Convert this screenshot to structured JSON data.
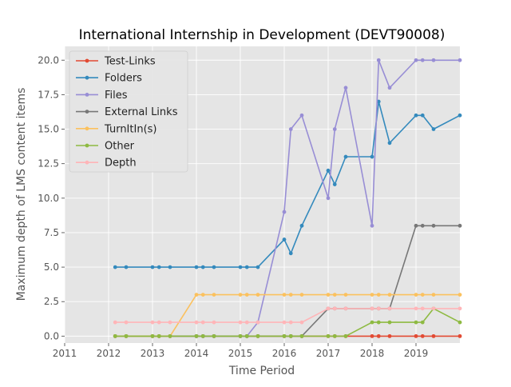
{
  "chart_data": {
    "type": "line",
    "title": "International Internship in Development (DEVT90008)",
    "xlabel": "Time Period",
    "ylabel": "Maximum depth of LMS content items",
    "xlim": [
      2011,
      2020
    ],
    "ylim": [
      -0.5,
      21
    ],
    "x_ticks": [
      2011,
      2012,
      2013,
      2014,
      2015,
      2016,
      2017,
      2018,
      2019
    ],
    "x_tick_labels": [
      "2011",
      "2012",
      "2013",
      "2014",
      "2015",
      "2016",
      "2017",
      "2018",
      "2019"
    ],
    "y_ticks": [
      0,
      2.5,
      5,
      7.5,
      10,
      12.5,
      15,
      17.5,
      20
    ],
    "y_tick_labels": [
      "0.0",
      "2.5",
      "5.0",
      "7.5",
      "10.0",
      "12.5",
      "15.0",
      "17.5",
      "20.0"
    ],
    "grid": true,
    "legend_position": "top-left",
    "background": "#e5e5e5",
    "x": [
      2012.15,
      2012.4,
      2013.0,
      2013.15,
      2013.4,
      2014.0,
      2014.15,
      2014.4,
      2015.0,
      2015.15,
      2015.4,
      2016.0,
      2016.15,
      2016.4,
      2017.0,
      2017.15,
      2017.4,
      2018.0,
      2018.15,
      2018.4,
      2019.0,
      2019.15,
      2019.4,
      2020.0
    ],
    "series": [
      {
        "name": "Test-Links",
        "color": "#E24A33",
        "values": [
          0,
          0,
          0,
          0,
          0,
          0,
          0,
          0,
          0,
          0,
          0,
          0,
          0,
          0,
          0,
          0,
          0,
          0,
          0,
          0,
          0,
          0,
          0,
          0
        ]
      },
      {
        "name": "Folders",
        "color": "#348ABD",
        "values": [
          5,
          5,
          5,
          5,
          5,
          5,
          5,
          5,
          5,
          5,
          5,
          7,
          6,
          8,
          12,
          11,
          13,
          13,
          17,
          14,
          16,
          16,
          15,
          16
        ]
      },
      {
        "name": "Files",
        "color": "#988ED5",
        "values": [
          0,
          0,
          0,
          0,
          0,
          0,
          0,
          0,
          0,
          0,
          1,
          9,
          15,
          16,
          10,
          15,
          18,
          8,
          20,
          18,
          20,
          20,
          20,
          20
        ]
      },
      {
        "name": "External Links",
        "color": "#777777",
        "values": [
          0,
          0,
          0,
          0,
          0,
          0,
          0,
          0,
          0,
          0,
          0,
          0,
          0,
          0,
          2,
          2,
          2,
          2,
          2,
          2,
          8,
          8,
          8,
          8
        ]
      },
      {
        "name": "TurnItIn(s)",
        "color": "#FBC15E",
        "values": [
          0,
          0,
          0,
          0,
          0,
          3,
          3,
          3,
          3,
          3,
          3,
          3,
          3,
          3,
          3,
          3,
          3,
          3,
          3,
          3,
          3,
          3,
          3,
          3
        ]
      },
      {
        "name": "Other",
        "color": "#8EBA42",
        "values": [
          0,
          0,
          0,
          0,
          0,
          0,
          0,
          0,
          0,
          0,
          0,
          0,
          0,
          0,
          0,
          0,
          0,
          1,
          1,
          1,
          1,
          1,
          2,
          1
        ]
      },
      {
        "name": "Depth",
        "color": "#FFB5B8",
        "values": [
          1,
          1,
          1,
          1,
          1,
          1,
          1,
          1,
          1,
          1,
          1,
          1,
          1,
          1,
          2,
          2,
          2,
          2,
          2,
          2,
          2,
          2,
          2,
          2
        ]
      }
    ]
  }
}
